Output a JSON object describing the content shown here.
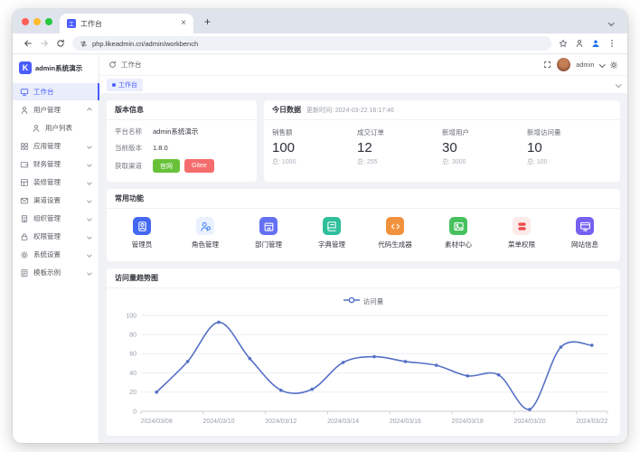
{
  "colors": {
    "primary": "#4a5dff",
    "chart_line": "#5470c6",
    "success": "#67c23a",
    "danger": "#f56c6c"
  },
  "browser": {
    "tab": {
      "title": "工作台"
    },
    "url": "php.likeadmin.cn/admin/workbench"
  },
  "app": {
    "logo_text": "admin系统演示",
    "header": {
      "breadcrumb": "工作台",
      "username": "admin"
    },
    "tabbar": {
      "active_tab": "工作台"
    },
    "sidebar": {
      "items": [
        {
          "key": "workbench",
          "label": "工作台",
          "icon": "monitor-icon",
          "active": true,
          "expandable": false
        },
        {
          "key": "user-management",
          "label": "用户管理",
          "icon": "user-icon",
          "expandable": true,
          "expanded": true,
          "children": [
            {
              "key": "user-list",
              "label": "用户列表",
              "icon": "user-icon"
            }
          ]
        },
        {
          "key": "application-management",
          "label": "应用管理",
          "icon": "app-grid-icon",
          "expandable": true
        },
        {
          "key": "finance-management",
          "label": "财务管理",
          "icon": "wallet-icon",
          "expandable": true
        },
        {
          "key": "decoration-management",
          "label": "装修管理",
          "icon": "layout-icon",
          "expandable": true
        },
        {
          "key": "channel-settings",
          "label": "渠道设置",
          "icon": "mail-icon",
          "expandable": true
        },
        {
          "key": "organization-management",
          "label": "组织管理",
          "icon": "building-icon",
          "expandable": true
        },
        {
          "key": "permission-management",
          "label": "权限管理",
          "icon": "lock-icon",
          "expandable": true
        },
        {
          "key": "system-settings",
          "label": "系统设置",
          "icon": "gear-icon",
          "expandable": true
        },
        {
          "key": "template-example",
          "label": "模板示例",
          "icon": "document-icon",
          "expandable": true
        }
      ]
    },
    "version_card": {
      "title": "版本信息",
      "rows": [
        {
          "label": "平台名称",
          "value": "admin系统演示"
        },
        {
          "label": "当前版本",
          "value": "1.8.0"
        },
        {
          "label": "获取渠道",
          "buttons": [
            {
              "key": "official-site",
              "label": "官网",
              "color": "#67c23a"
            },
            {
              "key": "gitee",
              "label": "Gitee",
              "color": "#f56c6c"
            }
          ]
        }
      ]
    },
    "today_card": {
      "title": "今日数据",
      "updated": "更新时间: 2024-03-22 16:17:46",
      "stats": [
        {
          "key": "sales",
          "label": "销售额",
          "value": "100",
          "total": "总: 1000"
        },
        {
          "key": "orders",
          "label": "成交订单",
          "value": "12",
          "total": "总: 255"
        },
        {
          "key": "new-users",
          "label": "新增用户",
          "value": "30",
          "total": "总: 3000"
        },
        {
          "key": "new-visits",
          "label": "新增访问量",
          "value": "10",
          "total": "总: 100"
        }
      ]
    },
    "features_card": {
      "title": "常用功能",
      "items": [
        {
          "key": "admin",
          "label": "管理员",
          "icon": "admin-badge-icon",
          "bg": "#4468f2",
          "glyph": "#ffffff"
        },
        {
          "key": "role-management",
          "label": "角色管理",
          "icon": "roles-icon",
          "bg": "#eaf1fe",
          "glyph": "#4b86f5"
        },
        {
          "key": "department-management",
          "label": "部门管理",
          "icon": "department-icon",
          "bg": "#6470f2",
          "glyph": "#ffffff"
        },
        {
          "key": "dictionary-management",
          "label": "字典管理",
          "icon": "dictionary-icon",
          "bg": "#2fbf9b",
          "glyph": "#ffffff"
        },
        {
          "key": "code-generator",
          "label": "代码生成器",
          "icon": "code-icon",
          "bg": "#f2913d",
          "glyph": "#ffffff"
        },
        {
          "key": "material-center",
          "label": "素材中心",
          "icon": "image-icon",
          "bg": "#47c15e",
          "glyph": "#ffffff"
        },
        {
          "key": "menu-permission",
          "label": "菜单权限",
          "icon": "menu-pills-icon",
          "bg": "#fdeaea",
          "glyph": "#ef4b4b"
        },
        {
          "key": "website-info",
          "label": "网站信息",
          "icon": "website-icon",
          "bg": "#7460f1",
          "glyph": "#ffffff"
        }
      ]
    },
    "chart_card": {
      "title": "访问量趋势图",
      "legend": "访问量"
    }
  },
  "chart_data": {
    "type": "line",
    "smooth": true,
    "grid": true,
    "legend_position": "top",
    "x": [
      "2024/03/08",
      "2024/03/09",
      "2024/03/10",
      "2024/03/11",
      "2024/03/12",
      "2024/03/13",
      "2024/03/14",
      "2024/03/15",
      "2024/03/16",
      "2024/03/17",
      "2024/03/18",
      "2024/03/19",
      "2024/03/20",
      "2024/03/21",
      "2024/03/22"
    ],
    "x_tick_labels": [
      "2024/03/08",
      "2024/03/10",
      "2024/03/12",
      "2024/03/14",
      "2024/03/16",
      "2024/03/18",
      "2024/03/20",
      "2024/03/22"
    ],
    "series": [
      {
        "name": "访问量",
        "values": [
          20,
          52,
          93,
          55,
          22,
          23,
          51,
          57,
          52,
          48,
          37,
          38,
          2,
          67,
          69
        ],
        "color": "#5470c6"
      }
    ],
    "ylim": [
      0,
      100
    ],
    "y_ticks": [
      0,
      20,
      40,
      60,
      80,
      100
    ]
  }
}
